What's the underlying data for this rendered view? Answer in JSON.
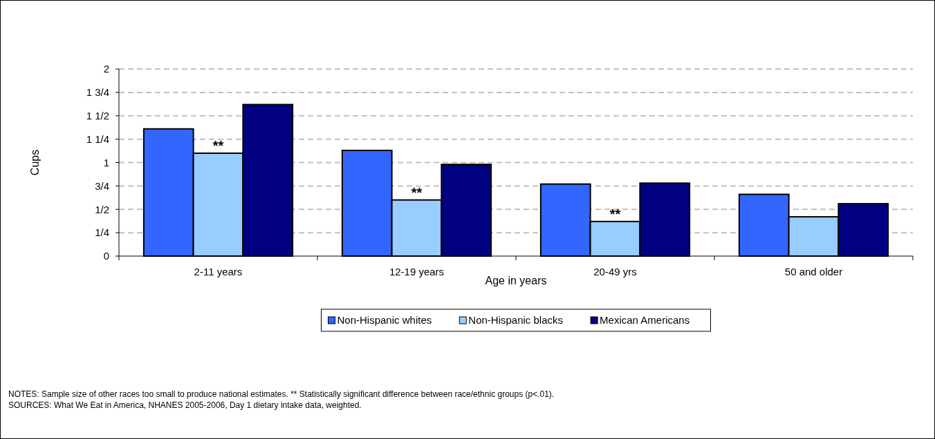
{
  "chart_data": {
    "type": "bar",
    "ylabel": "Cups",
    "xlabel": "Age in years",
    "categories": [
      "2-11 years",
      "12-19 years",
      "20-49 yrs",
      "50 and older"
    ],
    "series": [
      {
        "name": "Non-Hispanic whites",
        "color": "#3366ff",
        "values": [
          1.36,
          1.13,
          0.77,
          0.66
        ]
      },
      {
        "name": "Non-Hispanic blacks",
        "color": "#99ccff",
        "values": [
          1.1,
          0.6,
          0.37,
          0.42
        ]
      },
      {
        "name": "Mexican Americans",
        "color": "#000080",
        "values": [
          1.62,
          0.98,
          0.78,
          0.56
        ]
      }
    ],
    "ylim": [
      0,
      2
    ],
    "yticks": [
      0,
      {
        "value": 0.25,
        "label": "1/4"
      },
      {
        "value": 0.5,
        "label": "1/2"
      },
      {
        "value": 0.75,
        "label": "3/4"
      },
      1,
      {
        "value": 1.25,
        "label": "1 1/4"
      },
      {
        "value": 1.5,
        "label": "1 1/2"
      },
      {
        "value": 1.75,
        "label": "1 3/4"
      },
      2
    ],
    "grid": "y",
    "legend": "bottom",
    "annotations": [
      {
        "text": "**",
        "x": "2-11 years",
        "y": 1.1
      },
      {
        "text": "**",
        "x": "12-19 years",
        "y": 0.6
      },
      {
        "text": "**",
        "x": "20-49 yrs",
        "y": 0.37
      },
      "NOTES: Sample size of other races too small to produce national estimates. ** Statistically significant difference between race/ethnic groups (p<.01).",
      "SOURCES: What We Eat in America, NHANES 2005-2006, Day 1 dietary intake data, weighted."
    ]
  }
}
